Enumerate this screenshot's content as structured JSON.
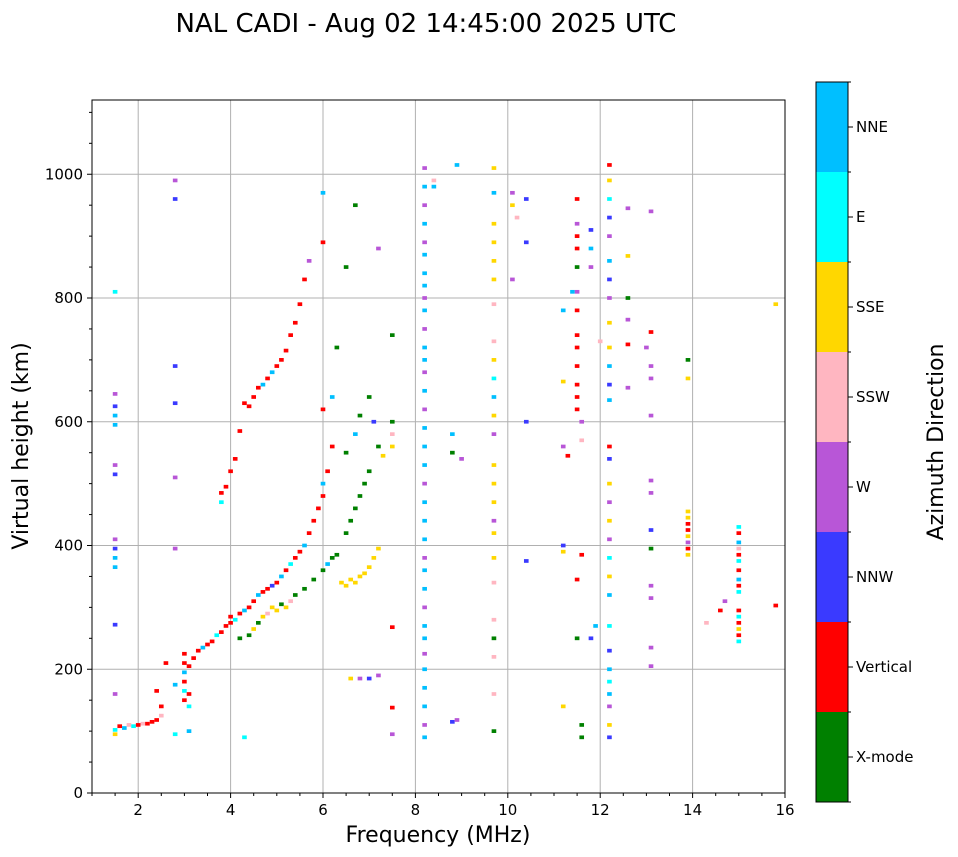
{
  "chart_data": {
    "type": "scatter",
    "title": "NAL CADI - Aug 02 14:45:00 2025 UTC",
    "xlabel": "Frequency (MHz)",
    "ylabel": "Virtual height (km)",
    "xlim": [
      1,
      16
    ],
    "ylim": [
      0,
      1120
    ],
    "xticks": [
      2,
      4,
      6,
      8,
      10,
      12,
      14,
      16
    ],
    "yticks": [
      0,
      200,
      400,
      600,
      800,
      1000
    ],
    "grid": true,
    "colorbar": {
      "label": "Azimuth Direction",
      "categories": [
        "X-mode",
        "Vertical",
        "NNW",
        "W",
        "SSW",
        "SSE",
        "E",
        "NNE"
      ],
      "colors": [
        "#008000",
        "#ff0000",
        "#3a3aff",
        "#b856d7",
        "#ffb6c1",
        "#ffd700",
        "#00ffff",
        "#00bfff"
      ]
    },
    "points": [
      [
        1.5,
        95,
        5
      ],
      [
        1.5,
        102,
        6
      ],
      [
        1.6,
        108,
        1
      ],
      [
        1.7,
        105,
        7
      ],
      [
        1.8,
        110,
        4
      ],
      [
        1.9,
        108,
        6
      ],
      [
        2.0,
        110,
        1
      ],
      [
        2.1,
        112,
        4
      ],
      [
        2.2,
        112,
        1
      ],
      [
        2.3,
        115,
        1
      ],
      [
        2.4,
        118,
        1
      ],
      [
        2.5,
        125,
        4
      ],
      [
        2.5,
        140,
        1
      ],
      [
        2.4,
        165,
        1
      ],
      [
        2.6,
        210,
        1
      ],
      [
        2.8,
        95,
        6
      ],
      [
        2.8,
        175,
        7
      ],
      [
        1.5,
        160,
        3
      ],
      [
        1.5,
        272,
        2
      ],
      [
        1.5,
        365,
        7
      ],
      [
        1.5,
        380,
        7
      ],
      [
        1.5,
        395,
        2
      ],
      [
        1.5,
        410,
        3
      ],
      [
        1.5,
        515,
        2
      ],
      [
        1.5,
        530,
        3
      ],
      [
        1.5,
        595,
        7
      ],
      [
        1.5,
        610,
        7
      ],
      [
        1.5,
        625,
        2
      ],
      [
        1.5,
        645,
        3
      ],
      [
        1.5,
        810,
        6
      ],
      [
        3.0,
        150,
        1
      ],
      [
        3.0,
        165,
        6
      ],
      [
        3.0,
        180,
        1
      ],
      [
        3.0,
        195,
        7
      ],
      [
        3.0,
        210,
        1
      ],
      [
        3.0,
        225,
        1
      ],
      [
        3.1,
        140,
        6
      ],
      [
        3.1,
        160,
        1
      ],
      [
        3.1,
        205,
        1
      ],
      [
        3.2,
        218,
        1
      ],
      [
        3.3,
        230,
        1
      ],
      [
        3.4,
        235,
        7
      ],
      [
        3.5,
        240,
        1
      ],
      [
        3.6,
        245,
        1
      ],
      [
        3.7,
        255,
        6
      ],
      [
        3.8,
        260,
        1
      ],
      [
        3.9,
        270,
        1
      ],
      [
        4.0,
        275,
        1
      ],
      [
        4.0,
        285,
        1
      ],
      [
        4.1,
        280,
        6
      ],
      [
        4.2,
        290,
        1
      ],
      [
        4.3,
        295,
        7
      ],
      [
        4.4,
        300,
        1
      ],
      [
        4.5,
        310,
        1
      ],
      [
        4.6,
        320,
        7
      ],
      [
        4.7,
        325,
        1
      ],
      [
        4.8,
        330,
        1
      ],
      [
        4.9,
        335,
        2
      ],
      [
        5.0,
        340,
        1
      ],
      [
        5.1,
        350,
        7
      ],
      [
        5.2,
        360,
        1
      ],
      [
        5.3,
        370,
        6
      ],
      [
        5.4,
        380,
        1
      ],
      [
        5.5,
        390,
        1
      ],
      [
        5.6,
        400,
        7
      ],
      [
        5.7,
        420,
        1
      ],
      [
        5.8,
        440,
        1
      ],
      [
        5.9,
        460,
        1
      ],
      [
        6.0,
        480,
        1
      ],
      [
        6.0,
        500,
        7
      ],
      [
        6.1,
        520,
        1
      ],
      [
        6.2,
        560,
        1
      ],
      [
        4.2,
        250,
        0
      ],
      [
        4.4,
        255,
        0
      ],
      [
        4.5,
        265,
        5
      ],
      [
        4.6,
        275,
        0
      ],
      [
        4.7,
        285,
        5
      ],
      [
        4.8,
        290,
        4
      ],
      [
        4.9,
        300,
        5
      ],
      [
        5.0,
        295,
        5
      ],
      [
        5.1,
        305,
        0
      ],
      [
        5.2,
        300,
        5
      ],
      [
        5.3,
        310,
        4
      ],
      [
        5.4,
        320,
        0
      ],
      [
        5.6,
        330,
        0
      ],
      [
        5.8,
        345,
        0
      ],
      [
        6.0,
        360,
        0
      ],
      [
        6.1,
        370,
        7
      ],
      [
        6.2,
        380,
        0
      ],
      [
        6.3,
        385,
        0
      ],
      [
        6.4,
        340,
        5
      ],
      [
        6.5,
        335,
        5
      ],
      [
        6.6,
        345,
        5
      ],
      [
        6.7,
        340,
        5
      ],
      [
        6.8,
        350,
        5
      ],
      [
        6.9,
        355,
        5
      ],
      [
        7.0,
        365,
        5
      ],
      [
        7.1,
        380,
        5
      ],
      [
        7.2,
        395,
        5
      ],
      [
        6.5,
        420,
        0
      ],
      [
        6.6,
        440,
        0
      ],
      [
        6.7,
        460,
        0
      ],
      [
        6.8,
        480,
        0
      ],
      [
        6.9,
        500,
        0
      ],
      [
        7.0,
        520,
        0
      ],
      [
        6.5,
        550,
        0
      ],
      [
        6.7,
        580,
        7
      ],
      [
        6.8,
        610,
        0
      ],
      [
        7.0,
        640,
        0
      ],
      [
        7.1,
        600,
        2
      ],
      [
        7.2,
        560,
        0
      ],
      [
        7.3,
        545,
        5
      ],
      [
        7.5,
        560,
        5
      ],
      [
        7.5,
        580,
        4
      ],
      [
        7.5,
        600,
        0
      ],
      [
        6.0,
        620,
        1
      ],
      [
        6.2,
        640,
        7
      ],
      [
        6.3,
        720,
        0
      ],
      [
        6.5,
        850,
        0
      ],
      [
        6.7,
        950,
        0
      ],
      [
        7.2,
        880,
        3
      ],
      [
        7.5,
        740,
        0
      ],
      [
        3.8,
        470,
        6
      ],
      [
        3.8,
        485,
        1
      ],
      [
        3.9,
        495,
        1
      ],
      [
        4.0,
        520,
        1
      ],
      [
        4.1,
        540,
        1
      ],
      [
        4.2,
        585,
        1
      ],
      [
        4.3,
        630,
        1
      ],
      [
        4.4,
        625,
        1
      ],
      [
        4.5,
        640,
        1
      ],
      [
        4.6,
        655,
        1
      ],
      [
        4.7,
        660,
        7
      ],
      [
        4.8,
        670,
        1
      ],
      [
        4.9,
        680,
        7
      ],
      [
        5.0,
        690,
        1
      ],
      [
        5.1,
        700,
        1
      ],
      [
        5.2,
        715,
        1
      ],
      [
        5.3,
        740,
        1
      ],
      [
        5.4,
        760,
        1
      ],
      [
        5.5,
        790,
        1
      ],
      [
        5.6,
        830,
        1
      ],
      [
        5.7,
        860,
        3
      ],
      [
        6.0,
        890,
        1
      ],
      [
        6.0,
        970,
        7
      ],
      [
        2.8,
        990,
        3
      ],
      [
        2.8,
        960,
        2
      ],
      [
        2.8,
        690,
        2
      ],
      [
        2.8,
        630,
        2
      ],
      [
        2.8,
        510,
        3
      ],
      [
        2.8,
        395,
        3
      ],
      [
        3.1,
        100,
        7
      ],
      [
        4.3,
        90,
        6
      ],
      [
        6.6,
        185,
        5
      ],
      [
        6.8,
        185,
        3
      ],
      [
        7.0,
        185,
        2
      ],
      [
        7.2,
        190,
        3
      ],
      [
        7.5,
        95,
        3
      ],
      [
        7.5,
        138,
        1
      ],
      [
        7.5,
        268,
        1
      ],
      [
        8.2,
        90,
        7
      ],
      [
        8.2,
        110,
        3
      ],
      [
        8.2,
        140,
        7
      ],
      [
        8.2,
        170,
        7
      ],
      [
        8.2,
        200,
        7
      ],
      [
        8.2,
        225,
        3
      ],
      [
        8.2,
        250,
        7
      ],
      [
        8.2,
        270,
        7
      ],
      [
        8.2,
        300,
        3
      ],
      [
        8.2,
        330,
        7
      ],
      [
        8.2,
        360,
        7
      ],
      [
        8.2,
        380,
        3
      ],
      [
        8.2,
        410,
        7
      ],
      [
        8.2,
        440,
        7
      ],
      [
        8.2,
        470,
        7
      ],
      [
        8.2,
        500,
        3
      ],
      [
        8.2,
        530,
        7
      ],
      [
        8.2,
        560,
        7
      ],
      [
        8.2,
        590,
        7
      ],
      [
        8.2,
        620,
        3
      ],
      [
        8.2,
        650,
        7
      ],
      [
        8.2,
        680,
        3
      ],
      [
        8.2,
        700,
        7
      ],
      [
        8.2,
        720,
        7
      ],
      [
        8.2,
        750,
        3
      ],
      [
        8.2,
        780,
        7
      ],
      [
        8.2,
        800,
        3
      ],
      [
        8.2,
        820,
        7
      ],
      [
        8.2,
        840,
        7
      ],
      [
        8.2,
        870,
        7
      ],
      [
        8.2,
        890,
        3
      ],
      [
        8.2,
        920,
        7
      ],
      [
        8.2,
        950,
        3
      ],
      [
        8.2,
        980,
        7
      ],
      [
        8.2,
        1010,
        3
      ],
      [
        8.4,
        980,
        7
      ],
      [
        8.4,
        990,
        4
      ],
      [
        8.8,
        115,
        2
      ],
      [
        8.9,
        118,
        3
      ],
      [
        8.8,
        550,
        0
      ],
      [
        8.8,
        580,
        7
      ],
      [
        9.0,
        540,
        3
      ],
      [
        8.9,
        1015,
        7
      ],
      [
        9.7,
        100,
        0
      ],
      [
        9.7,
        160,
        4
      ],
      [
        9.7,
        220,
        4
      ],
      [
        9.7,
        250,
        0
      ],
      [
        9.7,
        280,
        4
      ],
      [
        9.7,
        340,
        4
      ],
      [
        9.7,
        380,
        5
      ],
      [
        9.7,
        420,
        5
      ],
      [
        9.7,
        440,
        3
      ],
      [
        9.7,
        470,
        5
      ],
      [
        9.7,
        500,
        5
      ],
      [
        9.7,
        530,
        5
      ],
      [
        9.7,
        580,
        3
      ],
      [
        9.7,
        610,
        5
      ],
      [
        9.7,
        640,
        7
      ],
      [
        9.7,
        670,
        6
      ],
      [
        9.7,
        700,
        5
      ],
      [
        9.7,
        730,
        4
      ],
      [
        9.7,
        790,
        4
      ],
      [
        9.7,
        830,
        5
      ],
      [
        9.7,
        860,
        5
      ],
      [
        9.7,
        890,
        5
      ],
      [
        9.7,
        920,
        5
      ],
      [
        9.7,
        970,
        7
      ],
      [
        9.7,
        1010,
        5
      ],
      [
        10.1,
        830,
        3
      ],
      [
        10.1,
        970,
        3
      ],
      [
        10.2,
        930,
        4
      ],
      [
        10.4,
        960,
        2
      ],
      [
        10.4,
        890,
        2
      ],
      [
        10.4,
        600,
        2
      ],
      [
        10.4,
        375,
        2
      ],
      [
        10.1,
        950,
        5
      ],
      [
        11.2,
        140,
        5
      ],
      [
        11.2,
        390,
        5
      ],
      [
        11.2,
        400,
        2
      ],
      [
        11.2,
        560,
        3
      ],
      [
        11.2,
        665,
        5
      ],
      [
        11.2,
        780,
        7
      ],
      [
        11.3,
        545,
        1
      ],
      [
        11.4,
        810,
        7
      ],
      [
        11.5,
        250,
        0
      ],
      [
        11.5,
        345,
        1
      ],
      [
        11.5,
        620,
        1
      ],
      [
        11.5,
        640,
        1
      ],
      [
        11.5,
        660,
        1
      ],
      [
        11.5,
        690,
        1
      ],
      [
        11.5,
        720,
        1
      ],
      [
        11.5,
        740,
        1
      ],
      [
        11.5,
        780,
        1
      ],
      [
        11.5,
        810,
        3
      ],
      [
        11.5,
        850,
        0
      ],
      [
        11.5,
        880,
        1
      ],
      [
        11.5,
        900,
        1
      ],
      [
        11.5,
        920,
        3
      ],
      [
        11.5,
        960,
        1
      ],
      [
        11.6,
        90,
        0
      ],
      [
        11.6,
        110,
        0
      ],
      [
        11.6,
        385,
        1
      ],
      [
        11.6,
        570,
        4
      ],
      [
        11.6,
        600,
        3
      ],
      [
        11.8,
        250,
        2
      ],
      [
        11.8,
        850,
        3
      ],
      [
        11.8,
        880,
        7
      ],
      [
        11.8,
        910,
        2
      ],
      [
        11.9,
        270,
        7
      ],
      [
        12.0,
        730,
        4
      ],
      [
        12.2,
        90,
        2
      ],
      [
        12.2,
        110,
        5
      ],
      [
        12.2,
        140,
        3
      ],
      [
        12.2,
        160,
        7
      ],
      [
        12.2,
        180,
        6
      ],
      [
        12.2,
        200,
        7
      ],
      [
        12.2,
        230,
        2
      ],
      [
        12.2,
        270,
        6
      ],
      [
        12.2,
        320,
        7
      ],
      [
        12.2,
        350,
        5
      ],
      [
        12.2,
        380,
        6
      ],
      [
        12.2,
        410,
        3
      ],
      [
        12.2,
        440,
        5
      ],
      [
        12.2,
        470,
        3
      ],
      [
        12.2,
        500,
        5
      ],
      [
        12.2,
        540,
        2
      ],
      [
        12.2,
        560,
        1
      ],
      [
        12.2,
        635,
        7
      ],
      [
        12.2,
        660,
        2
      ],
      [
        12.2,
        690,
        7
      ],
      [
        12.2,
        720,
        5
      ],
      [
        12.2,
        760,
        5
      ],
      [
        12.2,
        800,
        3
      ],
      [
        12.2,
        830,
        2
      ],
      [
        12.2,
        860,
        7
      ],
      [
        12.2,
        900,
        3
      ],
      [
        12.2,
        930,
        2
      ],
      [
        12.2,
        960,
        6
      ],
      [
        12.2,
        990,
        5
      ],
      [
        12.2,
        1015,
        1
      ],
      [
        12.6,
        655,
        3
      ],
      [
        12.6,
        725,
        1
      ],
      [
        12.6,
        765,
        3
      ],
      [
        12.6,
        800,
        0
      ],
      [
        12.6,
        868,
        5
      ],
      [
        12.6,
        945,
        3
      ],
      [
        13.1,
        205,
        3
      ],
      [
        13.1,
        235,
        3
      ],
      [
        13.1,
        315,
        3
      ],
      [
        13.1,
        335,
        3
      ],
      [
        13.1,
        395,
        0
      ],
      [
        13.1,
        425,
        2
      ],
      [
        13.1,
        485,
        3
      ],
      [
        13.1,
        505,
        3
      ],
      [
        13.1,
        610,
        3
      ],
      [
        13.1,
        670,
        3
      ],
      [
        13.1,
        690,
        3
      ],
      [
        13.0,
        720,
        3
      ],
      [
        13.1,
        745,
        1
      ],
      [
        13.1,
        940,
        3
      ],
      [
        13.9,
        385,
        5
      ],
      [
        13.9,
        395,
        1
      ],
      [
        13.9,
        405,
        3
      ],
      [
        13.9,
        415,
        5
      ],
      [
        13.9,
        425,
        1
      ],
      [
        13.9,
        435,
        1
      ],
      [
        13.9,
        445,
        5
      ],
      [
        13.9,
        455,
        5
      ],
      [
        13.9,
        670,
        5
      ],
      [
        13.9,
        700,
        0
      ],
      [
        14.3,
        275,
        4
      ],
      [
        14.6,
        295,
        1
      ],
      [
        14.7,
        310,
        3
      ],
      [
        15.0,
        245,
        6
      ],
      [
        15.0,
        255,
        1
      ],
      [
        15.0,
        265,
        5
      ],
      [
        15.0,
        275,
        1
      ],
      [
        15.0,
        285,
        6
      ],
      [
        15.0,
        295,
        1
      ],
      [
        15.0,
        325,
        6
      ],
      [
        15.0,
        335,
        1
      ],
      [
        15.0,
        345,
        7
      ],
      [
        15.0,
        360,
        1
      ],
      [
        15.0,
        375,
        6
      ],
      [
        15.0,
        385,
        1
      ],
      [
        15.0,
        395,
        4
      ],
      [
        15.0,
        405,
        7
      ],
      [
        15.0,
        420,
        1
      ],
      [
        15.0,
        430,
        6
      ],
      [
        15.8,
        303,
        1
      ],
      [
        15.8,
        790,
        5
      ]
    ]
  }
}
